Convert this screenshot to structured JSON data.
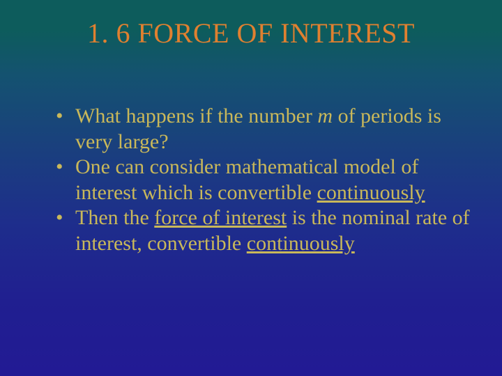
{
  "slide": {
    "title": "1. 6  FORCE OF INTEREST",
    "bullets": [
      {
        "pre": "What happens if the number ",
        "em": "m",
        "post1": " of periods is very large?"
      },
      {
        "text": "One can consider mathematical model of interest which is convertible ",
        "u": "continuously"
      },
      {
        "pre": "Then the ",
        "u1": "force of interest",
        "mid": " is the  nominal rate of interest, convertible ",
        "u2": "continuously"
      }
    ],
    "colors": {
      "title": "#e08030",
      "body": "#c9b85a",
      "bg_top": "#0d5c5c",
      "bg_bottom": "#221a94"
    },
    "typography": {
      "title_fontsize": 40,
      "body_fontsize": 30,
      "font_family": "Times New Roman"
    }
  }
}
